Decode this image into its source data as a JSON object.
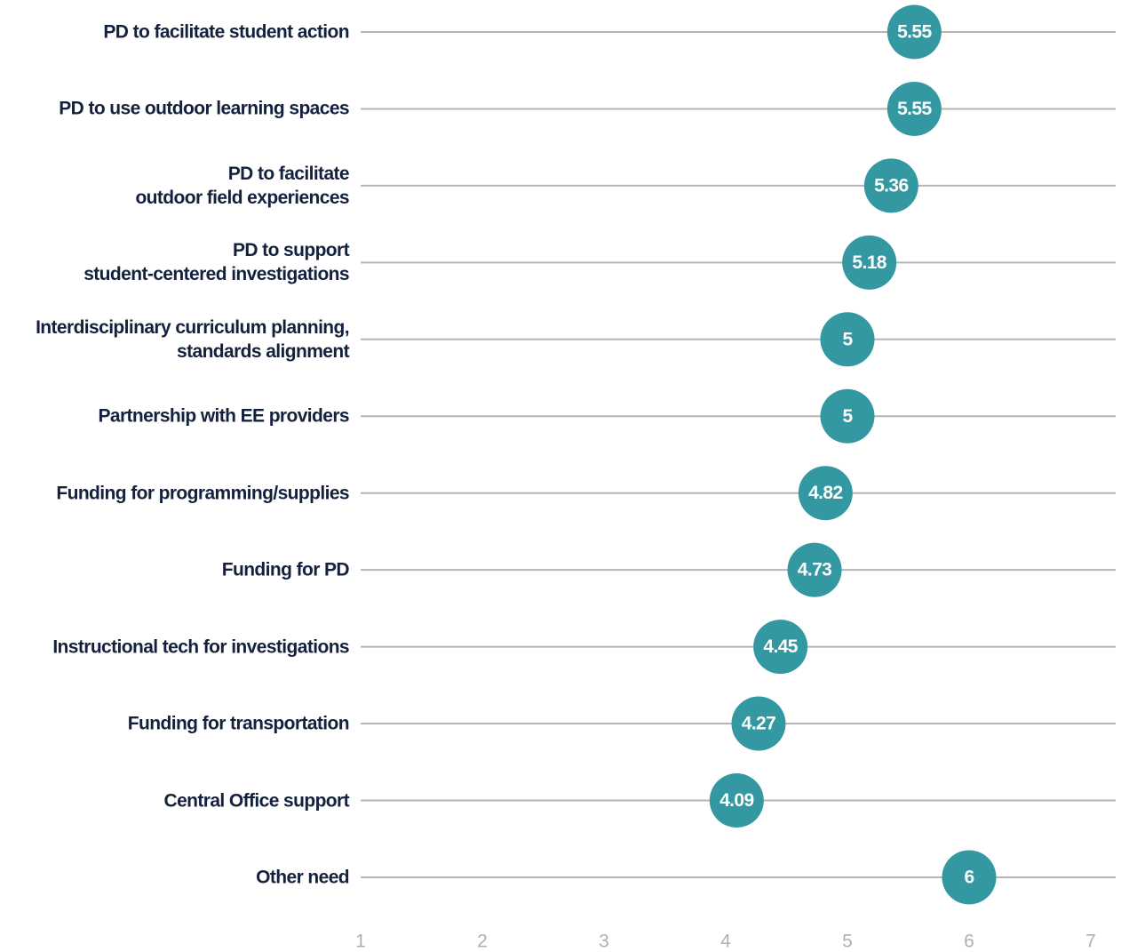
{
  "chart_data": {
    "type": "dot",
    "categories": [
      "PD to facilitate student action",
      "PD to use outdoor learning spaces",
      "PD to facilitate\noutdoor field experiences",
      "PD to support\nstudent-centered investigations",
      "Interdisciplinary curriculum planning,\nstandards alignment",
      "Partnership with EE providers",
      "Funding for programming/supplies",
      "Funding for PD",
      "Instructional tech for investigations",
      "Funding for transportation",
      "Central Office support",
      "Other need"
    ],
    "values": [
      5.55,
      5.55,
      5.36,
      5.18,
      5,
      5,
      4.82,
      4.73,
      4.45,
      4.27,
      4.09,
      6
    ],
    "color": "#3398a2",
    "xlim": [
      1,
      7
    ],
    "xticks": [
      1,
      2,
      3,
      4,
      5,
      6,
      7
    ]
  }
}
